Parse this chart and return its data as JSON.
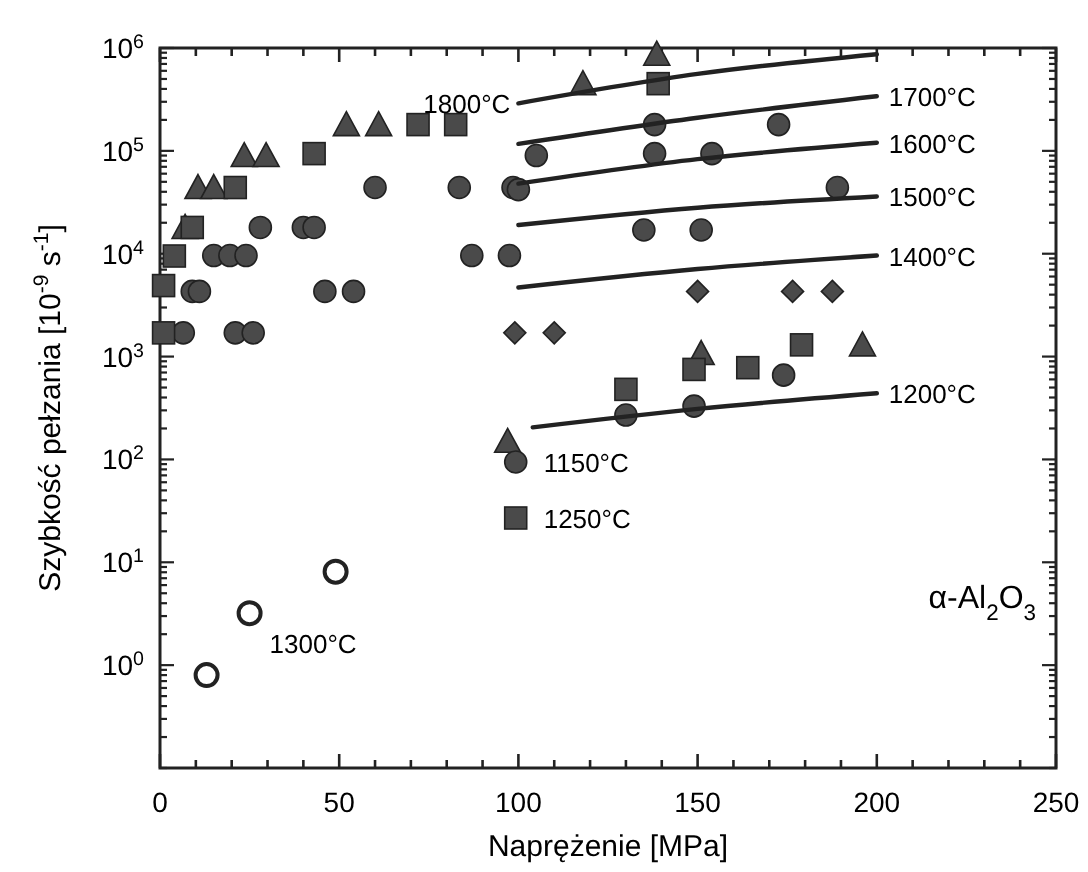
{
  "chart_data": {
    "type": "scatter",
    "xlabel": "Naprężenie  [MPa]",
    "ylabel": "Szybkość pełzania [10$^{-9}$ s$^{-1}$]",
    "log": "y",
    "xlim": [
      0,
      250
    ],
    "ylim": [
      0.1,
      1000000
    ],
    "xticks": [
      0,
      {
        "value": 10,
        "label": null
      },
      {
        "value": 20,
        "label": null
      },
      {
        "value": 30,
        "label": null
      },
      {
        "value": 40,
        "label": null
      },
      50,
      {
        "value": 60,
        "label": null
      },
      {
        "value": 70,
        "label": null
      },
      {
        "value": 80,
        "label": null
      },
      {
        "value": 90,
        "label": null
      },
      100,
      {
        "value": 110,
        "label": null
      },
      {
        "value": 120,
        "label": null
      },
      {
        "value": 130,
        "label": null
      },
      {
        "value": 140,
        "label": null
      },
      150,
      {
        "value": 160,
        "label": null
      },
      {
        "value": 170,
        "label": null
      },
      {
        "value": 180,
        "label": null
      },
      {
        "value": 190,
        "label": null
      },
      200,
      {
        "value": 210,
        "label": null
      },
      {
        "value": 220,
        "label": null
      },
      {
        "value": 230,
        "label": null
      },
      {
        "value": 240,
        "label": null
      },
      250
    ],
    "yticks": [
      {
        "value": 0.1,
        "label": null
      },
      {
        "value": 0.2,
        "label": null
      },
      {
        "value": 0.3,
        "label": null
      },
      {
        "value": 0.4,
        "label": null
      },
      {
        "value": 0.5,
        "label": null
      },
      {
        "value": 0.6,
        "label": null
      },
      {
        "value": 0.7,
        "label": null
      },
      {
        "value": 0.8,
        "label": null
      },
      {
        "value": 0.9,
        "label": null
      },
      {
        "value": 1,
        "label": "10$^{0}$"
      },
      {
        "value": 2,
        "label": null
      },
      {
        "value": 3,
        "label": null
      },
      {
        "value": 4,
        "label": null
      },
      {
        "value": 5,
        "label": null
      },
      {
        "value": 6,
        "label": null
      },
      {
        "value": 7,
        "label": null
      },
      {
        "value": 8,
        "label": null
      },
      {
        "value": 9,
        "label": null
      },
      {
        "value": 10,
        "label": "10$^{1}$"
      },
      {
        "value": 20,
        "label": null
      },
      {
        "value": 30,
        "label": null
      },
      {
        "value": 40,
        "label": null
      },
      {
        "value": 50,
        "label": null
      },
      {
        "value": 60,
        "label": null
      },
      {
        "value": 70,
        "label": null
      },
      {
        "value": 80,
        "label": null
      },
      {
        "value": 90,
        "label": null
      },
      {
        "value": 100,
        "label": "10$^{2}$"
      },
      {
        "value": 200,
        "label": null
      },
      {
        "value": 300,
        "label": null
      },
      {
        "value": 400,
        "label": null
      },
      {
        "value": 500,
        "label": null
      },
      {
        "value": 600,
        "label": null
      },
      {
        "value": 700,
        "label": null
      },
      {
        "value": 800,
        "label": null
      },
      {
        "value": 900,
        "label": null
      },
      {
        "value": 1000,
        "label": "10$^{3}$"
      },
      {
        "value": 2000,
        "label": null
      },
      {
        "value": 3000,
        "label": null
      },
      {
        "value": 4000,
        "label": null
      },
      {
        "value": 5000,
        "label": null
      },
      {
        "value": 6000,
        "label": null
      },
      {
        "value": 7000,
        "label": null
      },
      {
        "value": 8000,
        "label": null
      },
      {
        "value": 9000,
        "label": null
      },
      {
        "value": 10000,
        "label": "10$^{4}$"
      },
      {
        "value": 20000,
        "label": null
      },
      {
        "value": 30000,
        "label": null
      },
      {
        "value": 40000,
        "label": null
      },
      {
        "value": 50000,
        "label": null
      },
      {
        "value": 60000,
        "label": null
      },
      {
        "value": 70000,
        "label": null
      },
      {
        "value": 80000,
        "label": null
      },
      {
        "value": 90000,
        "label": null
      },
      {
        "value": 100000,
        "label": "10$^{5}$"
      },
      {
        "value": 200000,
        "label": null
      },
      {
        "value": 300000,
        "label": null
      },
      {
        "value": 400000,
        "label": null
      },
      {
        "value": 500000,
        "label": null
      },
      {
        "value": 600000,
        "label": null
      },
      {
        "value": 700000,
        "label": null
      },
      {
        "value": 800000,
        "label": null
      },
      {
        "value": 900000,
        "label": null
      },
      {
        "value": 1000000,
        "label": "10$^{6}$"
      }
    ],
    "grid": false,
    "legend": "center",
    "series": [
      {
        "marker": "triangle",
        "color": "#4a4a4a",
        "x": [
          7,
          10.6,
          15,
          23.5,
          29.6,
          52,
          61,
          97,
          118,
          138.6,
          151,
          196
        ],
        "values": [
          18000,
          44000,
          44000,
          90000,
          90000,
          180000,
          180000,
          150,
          450000,
          870000,
          1070,
          1300
        ]
      },
      {
        "marker": "circle",
        "name": "1150°C",
        "color": "#4a4a4a",
        "x": [
          6.5,
          21,
          26,
          9,
          11,
          46,
          54,
          15,
          19.5,
          24,
          87,
          97.5,
          28,
          40,
          43,
          60,
          83.5,
          98.5,
          100,
          105,
          138,
          172.6,
          138,
          154,
          189,
          135,
          151,
          174,
          130,
          149
        ],
        "values": [
          1700,
          1700,
          1700,
          4300,
          4300,
          4300,
          4300,
          9600,
          9600,
          9600,
          9600,
          9600,
          18000,
          18000,
          18000,
          44000,
          44000,
          44000,
          42000,
          90000,
          180000,
          180000,
          94000,
          94000,
          44000,
          17000,
          17000,
          660,
          270,
          330
        ]
      },
      {
        "marker": "square",
        "name": "1250°C",
        "color": "#4a4a4a",
        "x": [
          1,
          1,
          4,
          9,
          21,
          43,
          72,
          82.5,
          139,
          130,
          149,
          164,
          179
        ],
        "values": [
          1700,
          4900,
          9500,
          18000,
          44000,
          94000,
          180000,
          180000,
          450000,
          480,
          750,
          780,
          1300
        ]
      },
      {
        "marker": "diamond",
        "color": "#4a4a4a",
        "x": [
          99,
          110,
          150,
          176.5,
          187.6
        ],
        "values": [
          1700,
          1700,
          4300,
          4300,
          4300
        ]
      },
      {
        "marker": "circle",
        "name": "1300°C",
        "color": "#ffffff",
        "x": [
          13,
          25,
          49
        ],
        "values": [
          0.8,
          3.2,
          8.1
        ]
      },
      {
        "type": "line",
        "marker": "none",
        "line_style": "solid",
        "name": "1800°C",
        "color": "#222222",
        "x": [
          100,
          150,
          200
        ],
        "values": [
          290000,
          560000,
          870000
        ]
      },
      {
        "type": "line",
        "marker": "none",
        "line_style": "solid",
        "name": "1700°C",
        "color": "#222222",
        "x": [
          100,
          150,
          200
        ],
        "values": [
          117000,
          210000,
          340000
        ]
      },
      {
        "type": "line",
        "marker": "none",
        "line_style": "solid",
        "name": "1600°C",
        "color": "#222222",
        "x": [
          100,
          150,
          200
        ],
        "values": [
          48000,
          83000,
          120000
        ]
      },
      {
        "type": "line",
        "marker": "none",
        "line_style": "solid",
        "name": "1500°C",
        "color": "#222222",
        "x": [
          100,
          150,
          200
        ],
        "values": [
          19000,
          28000,
          36000
        ]
      },
      {
        "type": "line",
        "marker": "none",
        "line_style": "solid",
        "name": "1400°C",
        "color": "#222222",
        "x": [
          100,
          150,
          200
        ],
        "values": [
          4700,
          7100,
          9600
        ]
      },
      {
        "type": "line",
        "marker": "none",
        "line_style": "solid",
        "name": "1200°C",
        "color": "#222222",
        "x": [
          104,
          150,
          200
        ],
        "values": [
          205,
          310,
          440
        ]
      }
    ],
    "annotations": [
      "α-Al$_{2}$O$_{3}$"
    ]
  }
}
